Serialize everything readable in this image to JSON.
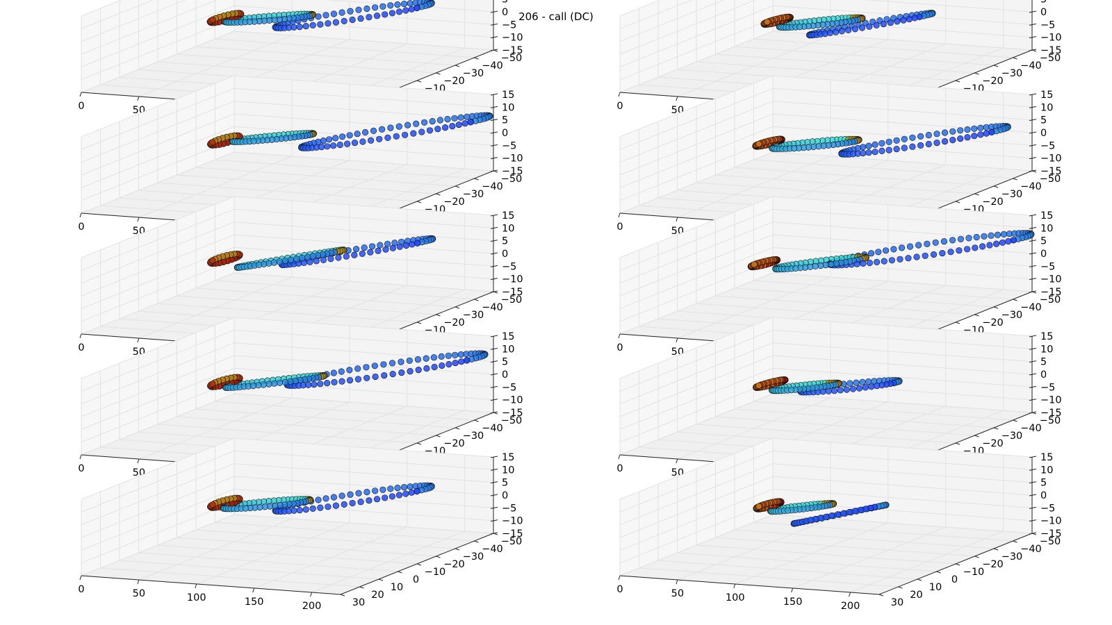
{
  "figure": {
    "title": "206 - call (DC)"
  },
  "chart_data": {
    "type": "scatter",
    "title": "206 - call (DC)",
    "layout_grid": "5 rows x 2 columns of 3D scatter trajectory plots",
    "grid": true,
    "axes": {
      "x": {
        "range": [
          0,
          225
        ],
        "ticks": [
          0,
          50,
          100,
          150,
          200
        ],
        "tick_labels": [
          "0",
          "50",
          "100",
          "150",
          "200"
        ]
      },
      "y": {
        "range": [
          -50,
          30
        ],
        "ticks": [
          -50,
          -40,
          -30,
          -20,
          -10,
          0,
          10,
          20,
          30
        ],
        "tick_labels": [
          "−50",
          "−40",
          "−30",
          "−20",
          "−10",
          "0",
          "10",
          "20",
          "30"
        ]
      },
      "z": {
        "range": [
          -15,
          15
        ],
        "ticks": [
          -15,
          -10,
          -5,
          0,
          5,
          10,
          15
        ],
        "tick_labels": [
          "−15",
          "−10",
          "−5",
          "0",
          "5",
          "10",
          "15"
        ]
      }
    },
    "colors": {
      "start": "#1f44ff",
      "mid": "#39e0d0",
      "end": "#8b0000",
      "edge": "#111111"
    },
    "panels": [
      {
        "id": 1,
        "row": 0,
        "col": 0,
        "loops": [
          {
            "cx": 150,
            "cy": -22,
            "cz": 0,
            "rx": 55,
            "ry": 24,
            "rz": 11,
            "n": 60,
            "t0": 0.0,
            "t1": 0.33,
            "w0": 0.0,
            "w1": 6.28
          },
          {
            "cx": 110,
            "cy": -2,
            "cz": 6,
            "rx": 35,
            "ry": 9,
            "rz": 5,
            "n": 55,
            "t0": 0.33,
            "t1": 0.75,
            "w0": 0.0,
            "w1": 6.28
          },
          {
            "cx": 82,
            "cy": 4,
            "cz": 7,
            "rx": 9,
            "ry": 6,
            "rz": 5,
            "n": 45,
            "t0": 0.75,
            "t1": 1.0,
            "w0": 0.0,
            "w1": 12.56
          }
        ]
      },
      {
        "id": 2,
        "row": 0,
        "col": 1,
        "loops": [
          {
            "cx": 135,
            "cy": -20,
            "cz": -3,
            "rx": 42,
            "ry": 20,
            "rz": 10,
            "n": 55,
            "t0": 0.0,
            "t1": 0.35,
            "w0": 0.0,
            "w1": 6.28
          },
          {
            "cx": 118,
            "cy": -4,
            "cz": 4,
            "rx": 32,
            "ry": 10,
            "rz": 5,
            "n": 55,
            "t0": 0.35,
            "t1": 0.78,
            "w0": 0.0,
            "w1": 6.28
          },
          {
            "cx": 90,
            "cy": 2,
            "cz": 6,
            "rx": 8,
            "ry": 5,
            "rz": 4,
            "n": 40,
            "t0": 0.78,
            "t1": 1.0,
            "w0": 0.0,
            "w1": 12.56
          }
        ]
      },
      {
        "id": 3,
        "row": 1,
        "col": 0,
        "loops": [
          {
            "cx": 165,
            "cy": -35,
            "cz": -3,
            "rx": 65,
            "ry": 30,
            "rz": 14,
            "n": 70,
            "t0": 0.0,
            "t1": 0.35,
            "w0": 0.0,
            "w1": 6.28
          },
          {
            "cx": 110,
            "cy": -4,
            "cz": 6,
            "rx": 32,
            "ry": 9,
            "rz": 5,
            "n": 55,
            "t0": 0.35,
            "t1": 0.75,
            "w0": 0.0,
            "w1": 6.28
          },
          {
            "cx": 80,
            "cy": 3,
            "cz": 6,
            "rx": 8,
            "ry": 6,
            "rz": 5,
            "n": 45,
            "t0": 0.75,
            "t1": 1.0,
            "w0": 0.0,
            "w1": 12.56
          }
        ]
      },
      {
        "id": 4,
        "row": 1,
        "col": 1,
        "loops": [
          {
            "cx": 165,
            "cy": -30,
            "cz": -4,
            "rx": 58,
            "ry": 26,
            "rz": 12,
            "n": 65,
            "t0": 0.0,
            "t1": 0.36,
            "w0": 0.0,
            "w1": 6.28
          },
          {
            "cx": 120,
            "cy": 0,
            "cz": 5,
            "rx": 34,
            "ry": 10,
            "rz": 5,
            "n": 55,
            "t0": 0.36,
            "t1": 0.78,
            "w0": 0.0,
            "w1": 6.28
          },
          {
            "cx": 86,
            "cy": 4,
            "cz": 6,
            "rx": 8,
            "ry": 5,
            "rz": 4,
            "n": 40,
            "t0": 0.78,
            "t1": 1.0,
            "w0": 0.0,
            "w1": 12.56
          }
        ]
      },
      {
        "id": 5,
        "row": 2,
        "col": 0,
        "loops": [
          {
            "cx": 150,
            "cy": -24,
            "cz": 1,
            "rx": 52,
            "ry": 24,
            "rz": 12,
            "n": 60,
            "t0": 0.0,
            "t1": 0.33,
            "w0": 0.0,
            "w1": 6.28
          },
          {
            "cx": 122,
            "cy": -6,
            "cz": 4,
            "rx": 38,
            "ry": 16,
            "rz": 9,
            "n": 60,
            "t0": 0.33,
            "t1": 0.76,
            "w0": 0.0,
            "w1": 6.28
          },
          {
            "cx": 80,
            "cy": 3,
            "cz": 7,
            "rx": 8,
            "ry": 6,
            "rz": 5,
            "n": 45,
            "t0": 0.76,
            "t1": 1.0,
            "w0": 0.0,
            "w1": 12.56
          }
        ]
      },
      {
        "id": 6,
        "row": 2,
        "col": 1,
        "loops": [
          {
            "cx": 170,
            "cy": -30,
            "cz": 0,
            "rx": 72,
            "ry": 30,
            "rz": 14,
            "n": 75,
            "t0": 0.0,
            "t1": 0.36,
            "w0": 0.0,
            "w1": 6.28
          },
          {
            "cx": 118,
            "cy": -4,
            "cz": 4,
            "rx": 34,
            "ry": 12,
            "rz": 6,
            "n": 55,
            "t0": 0.36,
            "t1": 0.78,
            "w0": 0.0,
            "w1": 6.28
          },
          {
            "cx": 82,
            "cy": 4,
            "cz": 6,
            "rx": 8,
            "ry": 5,
            "rz": 4,
            "n": 40,
            "t0": 0.78,
            "t1": 1.0,
            "w0": 0.0,
            "w1": 12.56
          }
        ]
      },
      {
        "id": 7,
        "row": 3,
        "col": 0,
        "loops": [
          {
            "cx": 165,
            "cy": -30,
            "cz": 0,
            "rx": 70,
            "ry": 30,
            "rz": 14,
            "n": 72,
            "t0": 0.0,
            "t1": 0.33,
            "w0": 0.0,
            "w1": 6.28
          },
          {
            "cx": 115,
            "cy": -2,
            "cz": 5,
            "rx": 38,
            "ry": 12,
            "rz": 7,
            "n": 58,
            "t0": 0.33,
            "t1": 0.76,
            "w0": 0.0,
            "w1": 6.28
          },
          {
            "cx": 80,
            "cy": 3,
            "cz": 6,
            "rx": 8,
            "ry": 6,
            "rz": 5,
            "n": 45,
            "t0": 0.76,
            "t1": 1.0,
            "w0": 0.0,
            "w1": 12.56
          }
        ]
      },
      {
        "id": 8,
        "row": 3,
        "col": 1,
        "loops": [
          {
            "cx": 125,
            "cy": -15,
            "cz": 0,
            "rx": 38,
            "ry": 12,
            "rz": 6,
            "n": 50,
            "t0": 0.0,
            "t1": 0.4,
            "w0": 0.0,
            "w1": 6.28
          },
          {
            "cx": 108,
            "cy": -2,
            "cz": 4,
            "rx": 26,
            "ry": 8,
            "rz": 4,
            "n": 50,
            "t0": 0.4,
            "t1": 0.78,
            "w0": 0.0,
            "w1": 6.28
          },
          {
            "cx": 86,
            "cy": 3,
            "cz": 6,
            "rx": 8,
            "ry": 6,
            "rz": 4,
            "n": 40,
            "t0": 0.78,
            "t1": 1.0,
            "w0": 0.0,
            "w1": 12.56
          }
        ]
      },
      {
        "id": 9,
        "row": 4,
        "col": 0,
        "loops": [
          {
            "cx": 150,
            "cy": -22,
            "cz": 0,
            "rx": 55,
            "ry": 24,
            "rz": 11,
            "n": 60,
            "t0": 0.0,
            "t1": 0.33,
            "w0": 0.0,
            "w1": 6.28
          },
          {
            "cx": 108,
            "cy": -2,
            "cz": 5,
            "rx": 34,
            "ry": 10,
            "rz": 5,
            "n": 55,
            "t0": 0.33,
            "t1": 0.75,
            "w0": 0.0,
            "w1": 6.28
          },
          {
            "cx": 80,
            "cy": 3,
            "cz": 6,
            "rx": 8,
            "ry": 6,
            "rz": 5,
            "n": 45,
            "t0": 0.75,
            "t1": 1.0,
            "w0": 0.0,
            "w1": 12.56
          }
        ]
      },
      {
        "id": 10,
        "row": 4,
        "col": 1,
        "loops": [
          {
            "cx": 118,
            "cy": -14,
            "cz": -4,
            "rx": 30,
            "ry": 16,
            "rz": 9,
            "n": 50,
            "t0": 0.0,
            "t1": 0.4,
            "w0": 0.0,
            "w1": 6.28
          },
          {
            "cx": 105,
            "cy": -2,
            "cz": 4,
            "rx": 24,
            "ry": 8,
            "rz": 4,
            "n": 50,
            "t0": 0.4,
            "t1": 0.78,
            "w0": 0.0,
            "w1": 6.28
          },
          {
            "cx": 86,
            "cy": 4,
            "cz": 6,
            "rx": 7,
            "ry": 5,
            "rz": 4,
            "n": 40,
            "t0": 0.78,
            "t1": 1.0,
            "w0": 0.0,
            "w1": 12.56
          }
        ]
      }
    ]
  }
}
